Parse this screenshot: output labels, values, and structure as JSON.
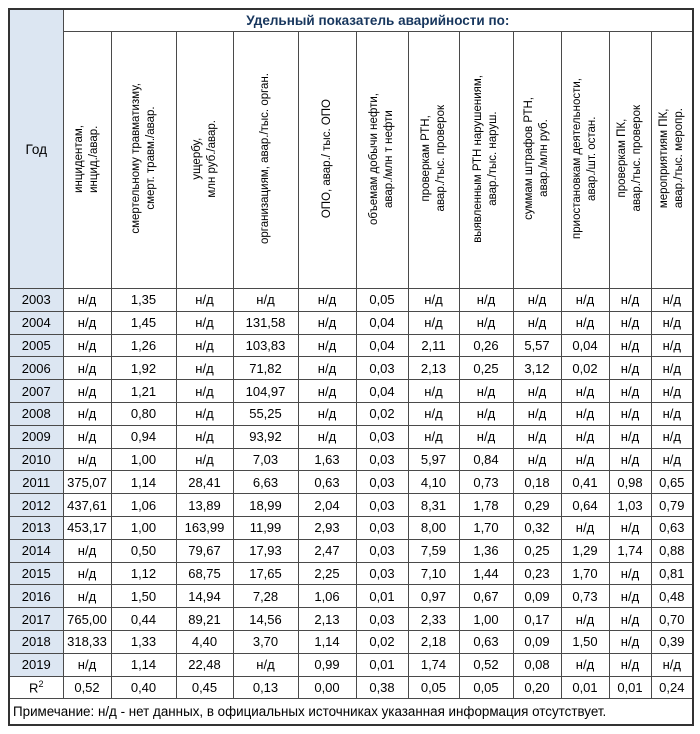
{
  "ui": {
    "accent_color": "#17365d",
    "year_fill_color": "#dce6f2",
    "border_color": "#4a4a4a",
    "na_label": "н/д"
  },
  "chart_data": {
    "type": "table",
    "title": "Удельный показатель аварийности по:",
    "row_header": "Год",
    "column_headers": [
      "инцидентам,\nинцид./авар.",
      "смертельному травматизму,\nсмерт. травм./авар.",
      "ущербу,\nмлн руб./авар.",
      "организациям, авар./тыс. орган.",
      "ОПО, авар./ тыс. ОПО",
      "объемам добычи нефти,\nавар./млн т нефти",
      "проверкам РТН,\nавар./тыс. проверок",
      "выявленным РТН нарушениям,\nавар./тыс. наруш.",
      "суммам штрафов РТН,\nавар./млн руб.",
      "приостановкам деятельности,\nавар./шт. остан.",
      "проверкам ПК,\nавар./тыс. проверок",
      "мероприятиям ПК,\nавар./тыс. меропр."
    ],
    "rows": [
      {
        "year": "2003",
        "values": [
          "н/д",
          "1,35",
          "н/д",
          "н/д",
          "н/д",
          "0,05",
          "н/д",
          "н/д",
          "н/д",
          "н/д",
          "н/д",
          "н/д"
        ]
      },
      {
        "year": "2004",
        "values": [
          "н/д",
          "1,45",
          "н/д",
          "131,58",
          "н/д",
          "0,04",
          "н/д",
          "н/д",
          "н/д",
          "н/д",
          "н/д",
          "н/д"
        ]
      },
      {
        "year": "2005",
        "values": [
          "н/д",
          "1,26",
          "н/д",
          "103,83",
          "н/д",
          "0,04",
          "2,11",
          "0,26",
          "5,57",
          "0,04",
          "н/д",
          "н/д"
        ]
      },
      {
        "year": "2006",
        "values": [
          "н/д",
          "1,92",
          "н/д",
          "71,82",
          "н/д",
          "0,03",
          "2,13",
          "0,25",
          "3,12",
          "0,02",
          "н/д",
          "н/д"
        ]
      },
      {
        "year": "2007",
        "values": [
          "н/д",
          "1,21",
          "н/д",
          "104,97",
          "н/д",
          "0,04",
          "н/д",
          "н/д",
          "н/д",
          "н/д",
          "н/д",
          "н/д"
        ]
      },
      {
        "year": "2008",
        "values": [
          "н/д",
          "0,80",
          "н/д",
          "55,25",
          "н/д",
          "0,02",
          "н/д",
          "н/д",
          "н/д",
          "н/д",
          "н/д",
          "н/д"
        ]
      },
      {
        "year": "2009",
        "values": [
          "н/д",
          "0,94",
          "н/д",
          "93,92",
          "н/д",
          "0,03",
          "н/д",
          "н/д",
          "н/д",
          "н/д",
          "н/д",
          "н/д"
        ]
      },
      {
        "year": "2010",
        "values": [
          "н/д",
          "1,00",
          "н/д",
          "7,03",
          "1,63",
          "0,03",
          "5,97",
          "0,84",
          "н/д",
          "н/д",
          "н/д",
          "н/д"
        ]
      },
      {
        "year": "2011",
        "values": [
          "375,07",
          "1,14",
          "28,41",
          "6,63",
          "0,63",
          "0,03",
          "4,10",
          "0,73",
          "0,18",
          "0,41",
          "0,98",
          "0,65"
        ]
      },
      {
        "year": "2012",
        "values": [
          "437,61",
          "1,06",
          "13,89",
          "18,99",
          "2,04",
          "0,03",
          "8,31",
          "1,78",
          "0,29",
          "0,64",
          "1,03",
          "0,79"
        ]
      },
      {
        "year": "2013",
        "values": [
          "453,17",
          "1,00",
          "163,99",
          "11,99",
          "2,93",
          "0,03",
          "8,00",
          "1,70",
          "0,32",
          "н/д",
          "н/д",
          "0,63"
        ]
      },
      {
        "year": "2014",
        "values": [
          "н/д",
          "0,50",
          "79,67",
          "17,93",
          "2,47",
          "0,03",
          "7,59",
          "1,36",
          "0,25",
          "1,29",
          "1,74",
          "0,88"
        ]
      },
      {
        "year": "2015",
        "values": [
          "н/д",
          "1,12",
          "68,75",
          "17,65",
          "2,25",
          "0,03",
          "7,10",
          "1,44",
          "0,23",
          "1,70",
          "н/д",
          "0,81"
        ]
      },
      {
        "year": "2016",
        "values": [
          "н/д",
          "1,50",
          "14,94",
          "7,28",
          "1,06",
          "0,01",
          "0,97",
          "0,67",
          "0,09",
          "0,73",
          "н/д",
          "0,48"
        ]
      },
      {
        "year": "2017",
        "values": [
          "765,00",
          "0,44",
          "89,21",
          "14,56",
          "2,13",
          "0,03",
          "2,33",
          "1,00",
          "0,17",
          "н/д",
          "н/д",
          "0,70"
        ]
      },
      {
        "year": "2018",
        "values": [
          "318,33",
          "1,33",
          "4,40",
          "3,70",
          "1,14",
          "0,02",
          "2,18",
          "0,63",
          "0,09",
          "1,50",
          "н/д",
          "0,39"
        ]
      },
      {
        "year": "2019",
        "values": [
          "н/д",
          "1,14",
          "22,48",
          "н/д",
          "0,99",
          "0,01",
          "1,74",
          "0,52",
          "0,08",
          "н/д",
          "н/д",
          "н/д"
        ]
      }
    ],
    "r2_row": {
      "label": "R",
      "sup": "2",
      "values": [
        "0,52",
        "0,40",
        "0,45",
        "0,13",
        "0,00",
        "0,38",
        "0,05",
        "0,05",
        "0,20",
        "0,01",
        "0,01",
        "0,24"
      ]
    },
    "note": "Примечание: н/д - нет данных, в официальных источниках указанная информация отсутствует."
  }
}
